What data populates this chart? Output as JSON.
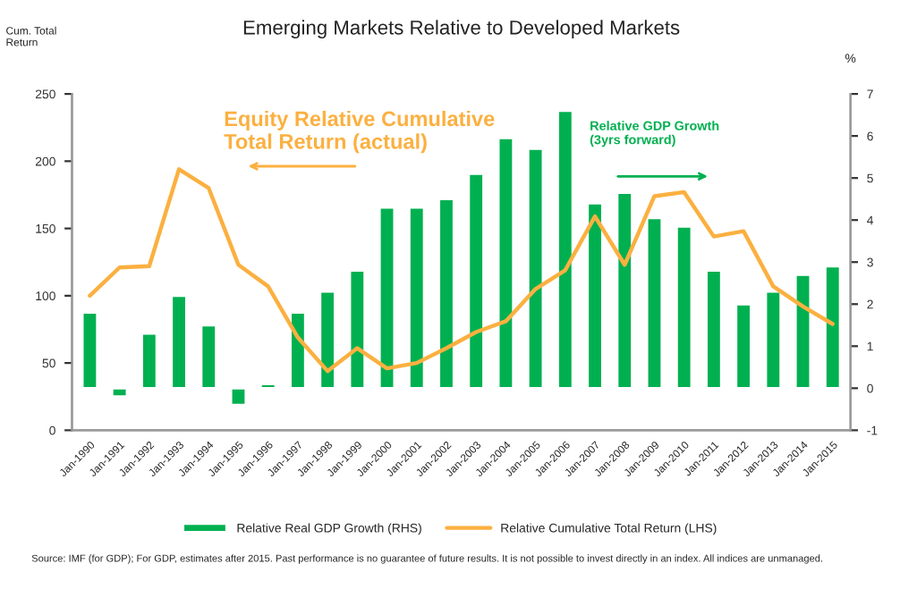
{
  "chart_data": {
    "type": "bar",
    "title": "Emerging Markets Relative to Developed Markets",
    "ylabel": "Cum. Total Return",
    "y2label": "%",
    "categories": [
      "Jan-1990",
      "Jan-1991",
      "Jan-1992",
      "Jan-1993",
      "Jan-1994",
      "Jan-1995",
      "Jan-1996",
      "Jan-1997",
      "Jan-1998",
      "Jan-1999",
      "Jan-2000",
      "Jan-2001",
      "Jan-2002",
      "Jan-2003",
      "Jan-2004",
      "Jan-2005",
      "Jan-2006",
      "Jan-2007",
      "Jan-2008",
      "Jan-2009",
      "Jan-2010",
      "Jan-2011",
      "Jan-2012",
      "Jan-2013",
      "Jan-2014",
      "Jan-2015"
    ],
    "series": [
      {
        "name": "Relative Real GDP Growth (RHS)",
        "axis": "y2",
        "color": "#00b050",
        "values": [
          1.8,
          -0.2,
          1.3,
          2.2,
          1.5,
          -0.4,
          0.1,
          1.8,
          2.3,
          2.8,
          4.3,
          4.3,
          4.5,
          5.1,
          5.95,
          5.7,
          6.6,
          4.4,
          4.65,
          4.05,
          3.85,
          2.8,
          2.0,
          2.3,
          2.7,
          2.9
        ]
      },
      {
        "name": "Relative Cumulative Total Return (LHS)",
        "type": "line",
        "axis": "y",
        "color": "#fbb040",
        "values": [
          100,
          121,
          122,
          194,
          180,
          123,
          107,
          69,
          44,
          61,
          46,
          50,
          61,
          73,
          81,
          105,
          119,
          159,
          123,
          174,
          177,
          144,
          148,
          107,
          92,
          79
        ]
      }
    ],
    "ylim": [
      0,
      250
    ],
    "yticks": [
      0,
      50,
      100,
      150,
      200,
      250
    ],
    "y2lim": [
      -1,
      7
    ],
    "y2ticks": [
      -1,
      0,
      1,
      2,
      3,
      4,
      5,
      6,
      7
    ],
    "grid": false,
    "legend": "bottom",
    "annotations": [
      "Equity Relative Cumulative Total Return (actual)",
      "Relative GDP Growth (3yrs forward)",
      "Source: IMF (for GDP); For GDP, estimates after 2015. Past performance is no guarantee of future results. It is not possible to invest directly in an index. All indices are unmanaged."
    ]
  }
}
